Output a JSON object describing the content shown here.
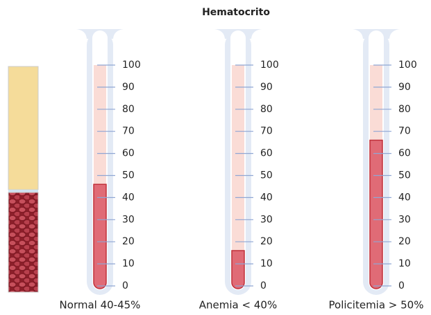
{
  "chart_data": {
    "type": "tube",
    "title": "Hematocrito",
    "categories": [
      "Normal 40-45%",
      "Anemia < 40%",
      "Policitemia > 50%"
    ],
    "values": [
      46,
      16,
      66
    ],
    "ylim": [
      0,
      100
    ],
    "yticks": [
      0,
      10,
      20,
      30,
      40,
      50,
      60,
      70,
      80,
      90,
      100
    ],
    "color": "#e06b76"
  }
}
